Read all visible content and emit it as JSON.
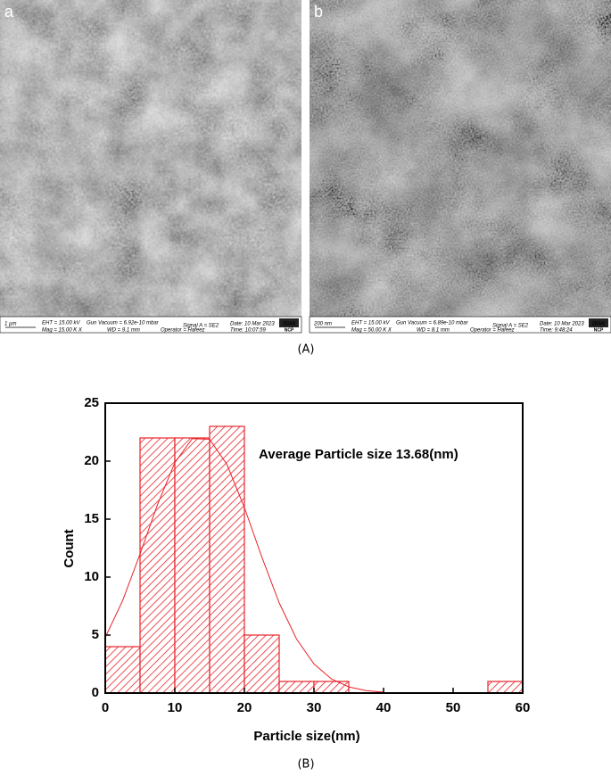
{
  "panels": [
    {
      "label": "a",
      "info": [
        "1 µm",
        "EHT = 15.00 kV",
        "Gun Vacuum = 6.92e-10 mbar",
        "Signal A = SE2",
        "Date: 10 Mar 2023",
        "Mag =  15.00 K X",
        "WD =  9.1 mm",
        "Operator = Hafeez",
        "Time: 10:07:59",
        "ZEISS",
        "NCP"
      ]
    },
    {
      "label": "b",
      "info": [
        "200 nm",
        "EHT = 15.00 kV",
        "Gun Vacuum = 6.89e-10 mbar",
        "Signal A = SE2",
        "Date: 10 Mar 2023",
        "Mag =  50.00 K X",
        "WD =  8.1 mm",
        "Operator = Hafeez",
        "Time: 9:48:24",
        "ZEISS",
        "NCP"
      ]
    }
  ],
  "caption_a": "(A)",
  "caption_b": "(B)",
  "chart_data": {
    "type": "histogram",
    "bins": [
      0,
      5,
      10,
      15,
      20,
      25,
      30,
      35,
      40,
      45,
      50,
      55,
      60
    ],
    "values": [
      4,
      22,
      22,
      23,
      5,
      1,
      1,
      0,
      0,
      0,
      0,
      1
    ],
    "color": "#e8232a",
    "annotation": "Average Particle size 13.68(nm)",
    "xlabel": "Particle size(nm)",
    "ylabel": "Count",
    "xlim": [
      0,
      60
    ],
    "ylim": [
      0,
      25
    ],
    "xticks": [
      0,
      10,
      20,
      30,
      40,
      50,
      60
    ],
    "yticks": [
      0,
      5,
      10,
      15,
      20,
      25
    ]
  }
}
